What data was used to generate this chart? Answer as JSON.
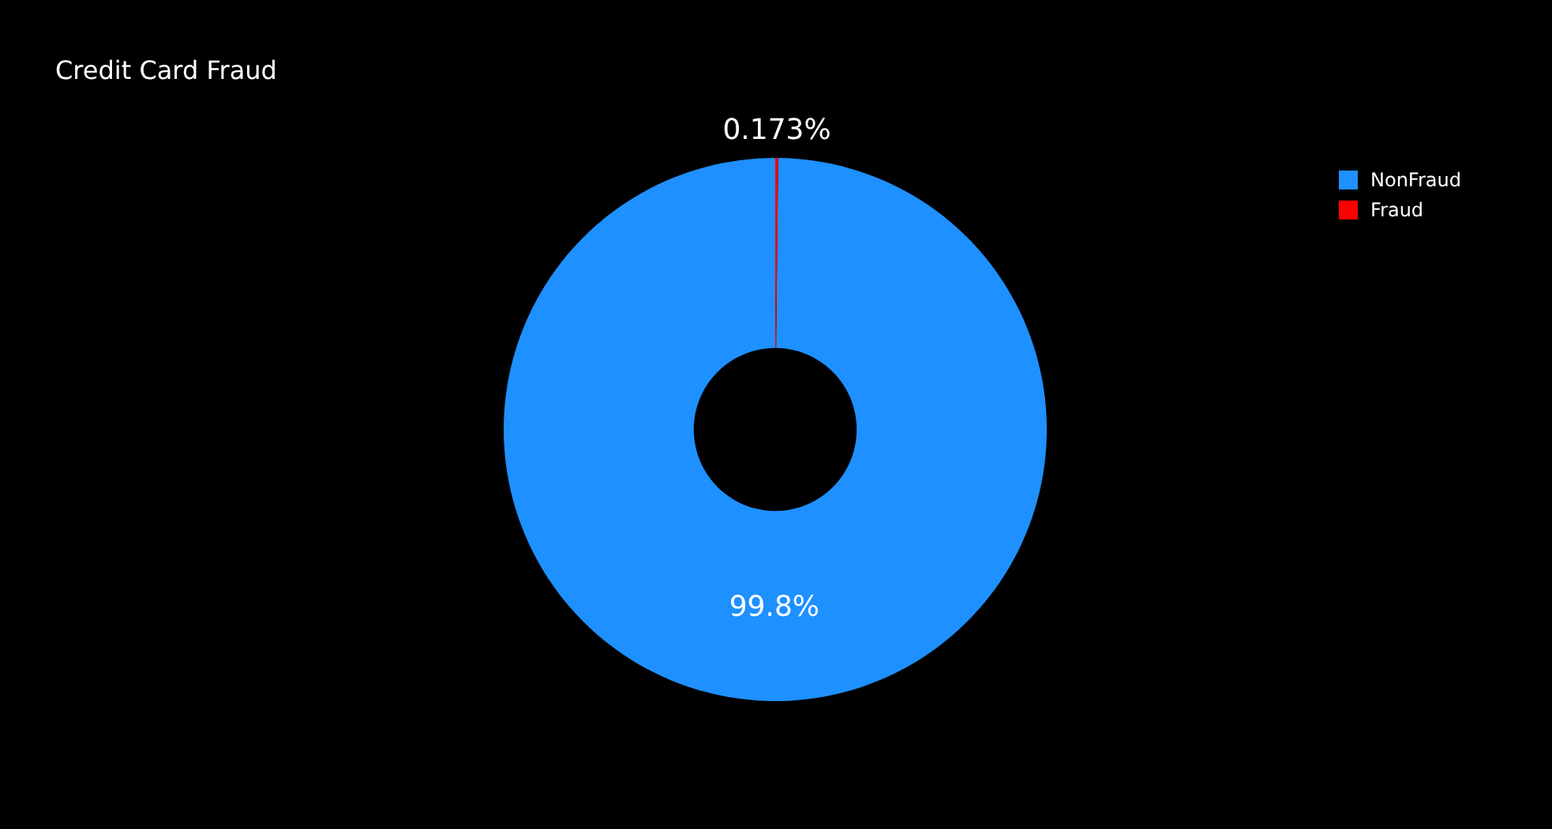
{
  "chart_data": {
    "type": "donut",
    "title": "Credit Card Fraud",
    "categories": [
      "NonFraud",
      "Fraud"
    ],
    "values": [
      99.827,
      0.173
    ],
    "colors": [
      "#1e90ff",
      "#ff0000"
    ],
    "value_labels": [
      "99.8%",
      "0.173%"
    ],
    "legend": "top right"
  }
}
